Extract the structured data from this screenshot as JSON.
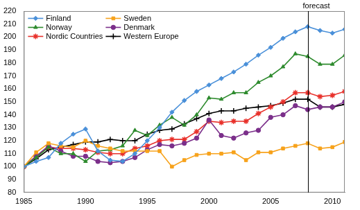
{
  "chart_data": {
    "type": "line",
    "x": [
      1985,
      1986,
      1987,
      1988,
      1989,
      1990,
      1991,
      1992,
      1993,
      1994,
      1995,
      1996,
      1997,
      1998,
      1999,
      2000,
      2001,
      2002,
      2003,
      2004,
      2005,
      2006,
      2007,
      2008,
      2009,
      2010,
      2011
    ],
    "series": [
      {
        "name": "Finland",
        "color": "#4a90d9",
        "marker": "diamond",
        "values": [
          100,
          104,
          107,
          118,
          125,
          129,
          112,
          105,
          104,
          110,
          120,
          130,
          142,
          151,
          158,
          163,
          168,
          173,
          179,
          186,
          192,
          199,
          204,
          208,
          205,
          203,
          206
        ]
      },
      {
        "name": "Sweden",
        "color": "#f7a21b",
        "marker": "square",
        "values": [
          100,
          111,
          118,
          116,
          115,
          120,
          116,
          114,
          112,
          112,
          112,
          112,
          100,
          105,
          109,
          110,
          110,
          111,
          105,
          111,
          111,
          114,
          116,
          118,
          114,
          115,
          119
        ]
      },
      {
        "name": "Norway",
        "color": "#2e8b2e",
        "marker": "triangle",
        "values": [
          100,
          107,
          115,
          110,
          110,
          104,
          112,
          113,
          116,
          128,
          124,
          132,
          138,
          132,
          140,
          153,
          152,
          157,
          157,
          165,
          170,
          177,
          187,
          185,
          179,
          179,
          186
        ]
      },
      {
        "name": "Denmark",
        "color": "#7b2f8a",
        "marker": "circle",
        "values": [
          100,
          108,
          116,
          112,
          108,
          108,
          104,
          103,
          104,
          107,
          113,
          117,
          116,
          118,
          122,
          136,
          124,
          122,
          126,
          128,
          138,
          140,
          147,
          144,
          146,
          146,
          150
        ]
      },
      {
        "name": "Nordic Countries",
        "color": "#e8302a",
        "marker": "star",
        "values": [
          100,
          108,
          115,
          114,
          114,
          113,
          111,
          110,
          110,
          114,
          116,
          120,
          121,
          121,
          127,
          135,
          134,
          135,
          135,
          141,
          146,
          150,
          157,
          157,
          154,
          155,
          158
        ]
      },
      {
        "name": "Western Europe",
        "color": "#000000",
        "marker": "plus",
        "values": [
          100,
          106,
          113,
          115,
          117,
          119,
          119,
          121,
          120,
          120,
          125,
          128,
          129,
          133,
          137,
          141,
          143,
          143,
          145,
          146,
          147,
          149,
          152,
          152,
          146,
          146,
          148
        ]
      }
    ],
    "xlim": [
      1985,
      2011
    ],
    "xticks": [
      1985,
      1990,
      1995,
      2000,
      2005,
      2010
    ],
    "ylim": [
      80,
      220
    ],
    "yticks": [
      80,
      90,
      100,
      110,
      120,
      130,
      140,
      150,
      160,
      170,
      180,
      190,
      200,
      210,
      220
    ],
    "annotations": [
      {
        "x": 2008,
        "label": "forecast"
      }
    ],
    "legend": "upper left",
    "grid": false
  }
}
